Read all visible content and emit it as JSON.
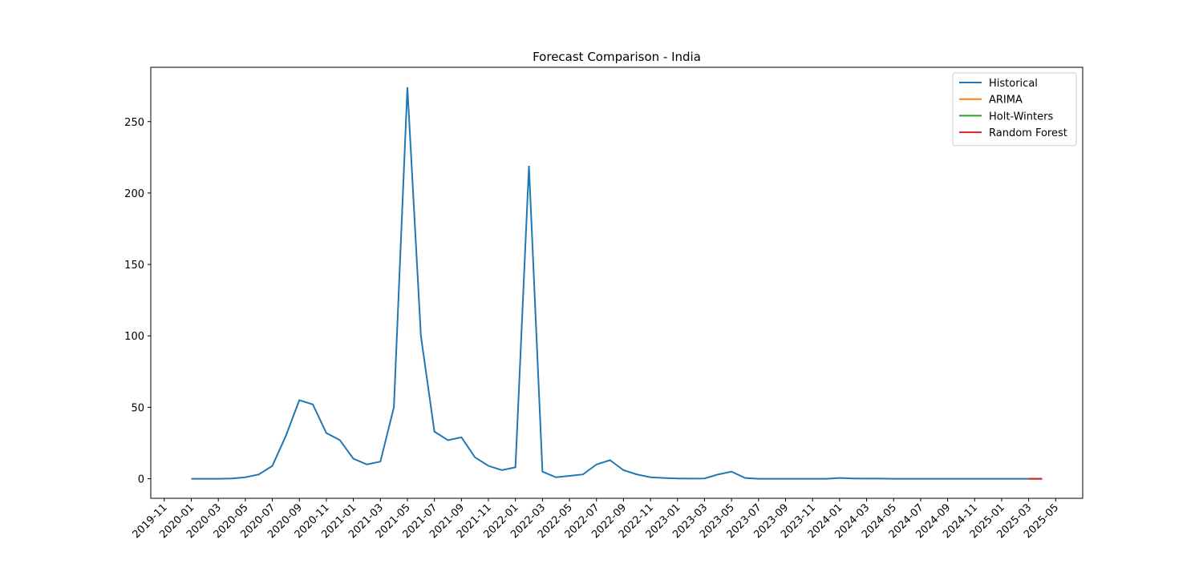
{
  "chart_data": {
    "type": "line",
    "title": "Forecast Comparison - India",
    "xlim": [
      "2019-10",
      "2025-07"
    ],
    "ylim": [
      -13.7,
      288
    ],
    "xticks": [
      "2019-11",
      "2020-01",
      "2020-03",
      "2020-05",
      "2020-07",
      "2020-09",
      "2020-11",
      "2021-01",
      "2021-03",
      "2021-05",
      "2021-07",
      "2021-09",
      "2021-11",
      "2022-01",
      "2022-03",
      "2022-05",
      "2022-07",
      "2022-09",
      "2022-11",
      "2023-01",
      "2023-03",
      "2023-05",
      "2023-07",
      "2023-09",
      "2023-11",
      "2024-01",
      "2024-03",
      "2024-05",
      "2024-07",
      "2024-09",
      "2024-11",
      "2025-01",
      "2025-03",
      "2025-05"
    ],
    "yticks": [
      0,
      50,
      100,
      150,
      200,
      250
    ],
    "legend": "upper right",
    "series": [
      {
        "name": "Historical",
        "color": "#1f77b4",
        "x": [
          "2020-01",
          "2020-02",
          "2020-03",
          "2020-04",
          "2020-05",
          "2020-06",
          "2020-07",
          "2020-08",
          "2020-09",
          "2020-10",
          "2020-11",
          "2020-12",
          "2021-01",
          "2021-02",
          "2021-03",
          "2021-04",
          "2021-05",
          "2021-06",
          "2021-07",
          "2021-08",
          "2021-09",
          "2021-10",
          "2021-11",
          "2021-12",
          "2022-01",
          "2022-02",
          "2022-03",
          "2022-04",
          "2022-05",
          "2022-06",
          "2022-07",
          "2022-08",
          "2022-09",
          "2022-10",
          "2022-11",
          "2022-12",
          "2023-01",
          "2023-02",
          "2023-03",
          "2023-04",
          "2023-05",
          "2023-06",
          "2023-07",
          "2023-08",
          "2023-09",
          "2023-10",
          "2023-11",
          "2023-12",
          "2024-01",
          "2024-02",
          "2024-03",
          "2024-04",
          "2024-05",
          "2024-06",
          "2024-07",
          "2024-08",
          "2024-09",
          "2024-10",
          "2024-11",
          "2024-12",
          "2025-01",
          "2025-02",
          "2025-03"
        ],
        "values": [
          0,
          0,
          0,
          0.2,
          1,
          3,
          9,
          30,
          55,
          52,
          32,
          27,
          14,
          10,
          12,
          50,
          274,
          100,
          33,
          27,
          29,
          15,
          9,
          6,
          8,
          219,
          5,
          1,
          2,
          3,
          10,
          13,
          6,
          3,
          1,
          0.5,
          0.2,
          0.1,
          0.2,
          3,
          5,
          0.5,
          0,
          0,
          0,
          0,
          0,
          0,
          0.5,
          0.2,
          0.1,
          0.1,
          0,
          0,
          0,
          0,
          0,
          0,
          0,
          0,
          0,
          0,
          0
        ]
      },
      {
        "name": "ARIMA",
        "color": "#ff7f0e",
        "x": [
          "2025-03",
          "2025-04"
        ],
        "values": [
          0,
          0
        ]
      },
      {
        "name": "Holt-Winters",
        "color": "#2ca02c",
        "x": [
          "2025-03",
          "2025-04"
        ],
        "values": [
          0,
          0
        ]
      },
      {
        "name": "Random Forest",
        "color": "#d62728",
        "x": [
          "2025-03",
          "2025-04"
        ],
        "values": [
          0,
          0
        ]
      }
    ]
  }
}
